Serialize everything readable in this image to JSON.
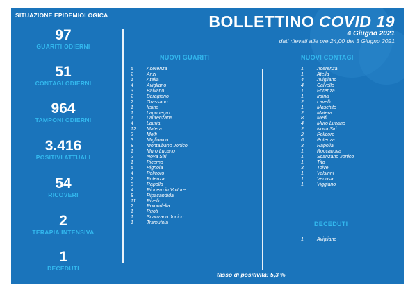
{
  "header": {
    "situation_title": "SITUAZIONE EPIDEMIOLOGICA",
    "title_main": "BOLLETTINO",
    "title_accent": "COVID 19",
    "date": "4 Giugno 2021",
    "subtitle": "dati rilevati alle ore 24,00 del 3 Giugno 2021"
  },
  "stats": [
    {
      "value": "97",
      "label": "GUARITI ODIERNI"
    },
    {
      "value": "51",
      "label": "CONTAGI ODIERNI"
    },
    {
      "value": "964",
      "label": "TAMPONI ODIERNI"
    },
    {
      "value": "3.416",
      "label": "POSITIVI ATTUALI"
    },
    {
      "value": "54",
      "label": "RICOVERI"
    },
    {
      "value": "2",
      "label": "TERAPIA INTENSIVA"
    },
    {
      "value": "1",
      "label": "DECEDUTI"
    }
  ],
  "guariti": {
    "heading": "NUOVI GUARITI",
    "rows": [
      {
        "n": "5",
        "comune": "Acerenza"
      },
      {
        "n": "2",
        "comune": "Anzi"
      },
      {
        "n": "1",
        "comune": "Atella"
      },
      {
        "n": "4",
        "comune": "Avigliano"
      },
      {
        "n": "3",
        "comune": "Balvano"
      },
      {
        "n": "2",
        "comune": "Baragiano"
      },
      {
        "n": "2",
        "comune": "Grassano"
      },
      {
        "n": "1",
        "comune": "Irsina"
      },
      {
        "n": "1",
        "comune": "Lagonegro"
      },
      {
        "n": "1",
        "comune": "Laurenzana"
      },
      {
        "n": "4",
        "comune": "Lauria"
      },
      {
        "n": "12",
        "comune": "Matera"
      },
      {
        "n": "2",
        "comune": "Melfi"
      },
      {
        "n": "3",
        "comune": "Miglionico"
      },
      {
        "n": "8",
        "comune": "Montalbano Jonico"
      },
      {
        "n": "1",
        "comune": "Muro Lucano"
      },
      {
        "n": "2",
        "comune": "Nova Siri"
      },
      {
        "n": "1",
        "comune": "Picerno"
      },
      {
        "n": "5",
        "comune": "Pignola"
      },
      {
        "n": "4",
        "comune": "Policoro"
      },
      {
        "n": "2",
        "comune": "Potenza"
      },
      {
        "n": "3",
        "comune": "Rapolla"
      },
      {
        "n": "4",
        "comune": "Rionero in Vulture"
      },
      {
        "n": "8",
        "comune": "Ripacandida"
      },
      {
        "n": "11",
        "comune": "Rivello"
      },
      {
        "n": "2",
        "comune": "Rotondella"
      },
      {
        "n": "1",
        "comune": "Ruoti"
      },
      {
        "n": "1",
        "comune": "Scanzano Jonico"
      },
      {
        "n": "1",
        "comune": "Tramutola"
      }
    ]
  },
  "contagi": {
    "heading": "NUOVI CONTAGI",
    "rows": [
      {
        "n": "1",
        "comune": "Acerenza"
      },
      {
        "n": "1",
        "comune": "Atella"
      },
      {
        "n": "4",
        "comune": "Avigliano"
      },
      {
        "n": "4",
        "comune": "Calvello"
      },
      {
        "n": "1",
        "comune": "Forenza"
      },
      {
        "n": "1",
        "comune": "Irsina"
      },
      {
        "n": "2",
        "comune": "Lavello"
      },
      {
        "n": "1",
        "comune": "Maschito"
      },
      {
        "n": "2",
        "comune": "Matera"
      },
      {
        "n": "8",
        "comune": "Melfi"
      },
      {
        "n": "4",
        "comune": "Muro Lucano"
      },
      {
        "n": "2",
        "comune": "Nova Siri"
      },
      {
        "n": "2",
        "comune": "Policoro"
      },
      {
        "n": "6",
        "comune": "Potenza"
      },
      {
        "n": "3",
        "comune": "Rapolla"
      },
      {
        "n": "1",
        "comune": "Roccanova"
      },
      {
        "n": "1",
        "comune": "Scanzano Jonico"
      },
      {
        "n": "1",
        "comune": "Tito"
      },
      {
        "n": "3",
        "comune": "Tolve"
      },
      {
        "n": "1",
        "comune": "Valsinni"
      },
      {
        "n": "1",
        "comune": "Venosa"
      },
      {
        "n": "1",
        "comune": "Viggiano"
      }
    ]
  },
  "deceduti": {
    "heading": "DECEDUTI",
    "rows": [
      {
        "n": "1",
        "comune": "Avigliano"
      }
    ]
  },
  "positivity": "tasso di positività: 5,3 %",
  "colors": {
    "background": "#1a74bb",
    "accent": "#33b8ee",
    "text": "#ffffff"
  }
}
